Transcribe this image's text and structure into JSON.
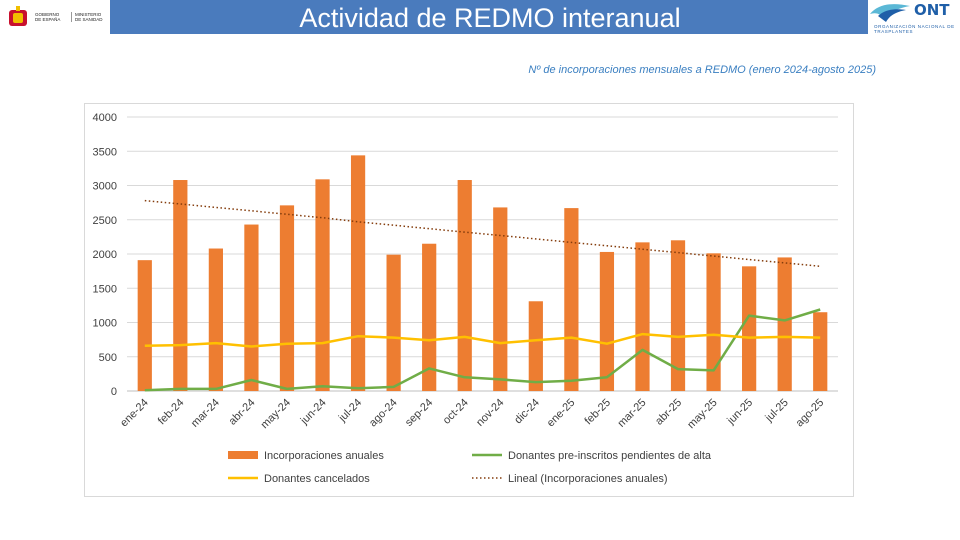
{
  "header": {
    "title": "Actividad de REDMO interanual",
    "left_logo": {
      "line1": "GOBIERNO DE ESPAÑA",
      "line2": "MINISTERIO DE SANIDAD"
    },
    "right_logo": {
      "name": "ONT",
      "tagline": "ORGANIZACIÓN NACIONAL DE TRASPLANTES"
    }
  },
  "subtitle": "Nº de incorporaciones mensuales a REDMO (enero 2024-agosto 2025)",
  "colors": {
    "banner": "#4a7bbd",
    "bar": "#ed7d31",
    "green": "#70ad47",
    "yellow": "#ffc000",
    "trend": "#843c0c"
  },
  "chart_data": {
    "type": "bar",
    "categories": [
      "ene-24",
      "feb-24",
      "mar-24",
      "abr-24",
      "may-24",
      "jun-24",
      "jul-24",
      "ago-24",
      "sep-24",
      "oct-24",
      "nov-24",
      "dic-24",
      "ene-25",
      "feb-25",
      "mar-25",
      "abr-25",
      "may-25",
      "jun-25",
      "jul-25",
      "ago-25"
    ],
    "series": [
      {
        "name": "Incorporaciones anuales",
        "kind": "bar",
        "color": "#ed7d31",
        "values": [
          1910,
          3080,
          2080,
          2430,
          2710,
          3090,
          3440,
          1990,
          2150,
          3080,
          2680,
          1310,
          2670,
          2030,
          2170,
          2200,
          2010,
          1820,
          1950,
          1150
        ]
      },
      {
        "name": "Donantes pre-inscritos pendientes de alta",
        "kind": "line",
        "color": "#70ad47",
        "values": [
          10,
          30,
          30,
          160,
          30,
          70,
          40,
          60,
          330,
          200,
          170,
          130,
          150,
          200,
          600,
          320,
          300,
          1100,
          1030,
          1190
        ]
      },
      {
        "name": "Donantes cancelados",
        "kind": "line",
        "color": "#ffc000",
        "values": [
          660,
          670,
          700,
          650,
          690,
          700,
          800,
          780,
          740,
          790,
          700,
          740,
          780,
          690,
          830,
          790,
          820,
          780,
          790,
          780
        ]
      },
      {
        "name": "Lineal (Incorporaciones anuales)",
        "kind": "trend",
        "color": "#843c0c",
        "values": [
          2780,
          2730,
          2680,
          2630,
          2580,
          2530,
          2470,
          2420,
          2370,
          2320,
          2270,
          2220,
          2170,
          2120,
          2070,
          2020,
          1970,
          1920,
          1870,
          1820
        ]
      }
    ],
    "ylim": [
      0,
      4000
    ],
    "yticks": [
      "0",
      "500",
      "1000",
      "1500",
      "2000",
      "2500",
      "3000",
      "3500",
      "4000"
    ],
    "grid": true,
    "legend_position": "bottom"
  }
}
